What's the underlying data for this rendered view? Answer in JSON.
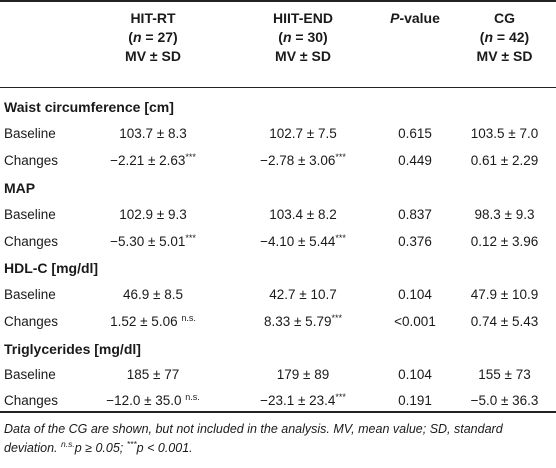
{
  "table": {
    "headers": [
      {
        "name": "HIT-RT",
        "n_label": "(n = 27)",
        "n_prefix": "(",
        "n_var": "n",
        "n_rest": " = 27)",
        "stat": "MV ± SD"
      },
      {
        "name": "HIIT-END",
        "n_label": "(n = 30)",
        "n_prefix": "(",
        "n_var": "n",
        "n_rest": " = 30)",
        "stat": "MV ± SD"
      },
      {
        "name": "P-value",
        "name_italic": "P",
        "name_rest": "-value"
      },
      {
        "name": "CG",
        "n_label": "(n = 42)",
        "n_prefix": "(",
        "n_var": "n",
        "n_rest": " = 42)",
        "stat": "MV ± SD"
      }
    ],
    "sections": [
      {
        "title": "Waist circumference [cm]",
        "rows": [
          {
            "label": "Baseline",
            "hit_rt": "103.7 ± 8.3",
            "hit_rt_sup": "",
            "hiit_end": "102.7 ± 7.5",
            "hiit_end_sup": "",
            "p": "0.615",
            "cg": "103.5 ± 7.0"
          },
          {
            "label": "Changes",
            "hit_rt": "−2.21 ± 2.63",
            "hit_rt_sup": "***",
            "hiit_end": "−2.78 ± 3.06",
            "hiit_end_sup": "***",
            "p": "0.449",
            "cg": "0.61 ± 2.29"
          }
        ]
      },
      {
        "title": "MAP",
        "rows": [
          {
            "label": "Baseline",
            "hit_rt": "102.9 ± 9.3",
            "hit_rt_sup": "",
            "hiit_end": "103.4 ± 8.2",
            "hiit_end_sup": "",
            "p": "0.837",
            "cg": "98.3 ± 9.3"
          },
          {
            "label": "Changes",
            "hit_rt": "−5.30 ± 5.01",
            "hit_rt_sup": "***",
            "hiit_end": "−4.10 ± 5.44",
            "hiit_end_sup": "***",
            "p": "0.376",
            "cg": "0.12 ± 3.96"
          }
        ]
      },
      {
        "title": "HDL-C [mg/dl]",
        "rows": [
          {
            "label": "Baseline",
            "hit_rt": "46.9 ± 8.5",
            "hit_rt_sup": "",
            "hiit_end": "42.7 ± 10.7",
            "hiit_end_sup": "",
            "p": "0.104",
            "cg": "47.9 ± 10.9"
          },
          {
            "label": "Changes",
            "hit_rt": "1.52 ± 5.06 ",
            "hit_rt_sup": "n.s.",
            "hiit_end": "8.33 ± 5.79",
            "hiit_end_sup": "***",
            "p": "<0.001",
            "cg": "0.74 ± 5.43"
          }
        ]
      },
      {
        "title": "Triglycerides [mg/dl]",
        "rows": [
          {
            "label": "Baseline",
            "hit_rt": "185 ± 77",
            "hit_rt_sup": "",
            "hiit_end": "179 ± 89",
            "hiit_end_sup": "",
            "p": "0.104",
            "cg": "155 ± 73"
          },
          {
            "label": "Changes",
            "hit_rt": "−12.0 ± 35.0 ",
            "hit_rt_sup": "n.s.",
            "hiit_end": "−23.1 ± 23.4",
            "hiit_end_sup": "***",
            "p": "0.191",
            "cg": "−5.0 ± 36.3"
          }
        ]
      }
    ]
  },
  "footnote": {
    "line1": "Data of the CG are shown, but not included in the analysis. MV, mean value; SD, standard",
    "line2_pre": "deviation. ",
    "line2_sup": "n.s.",
    "line2_mid": "p ≥ 0.05; ",
    "line2_sup2": "***",
    "line2_end": "p < 0.001."
  }
}
